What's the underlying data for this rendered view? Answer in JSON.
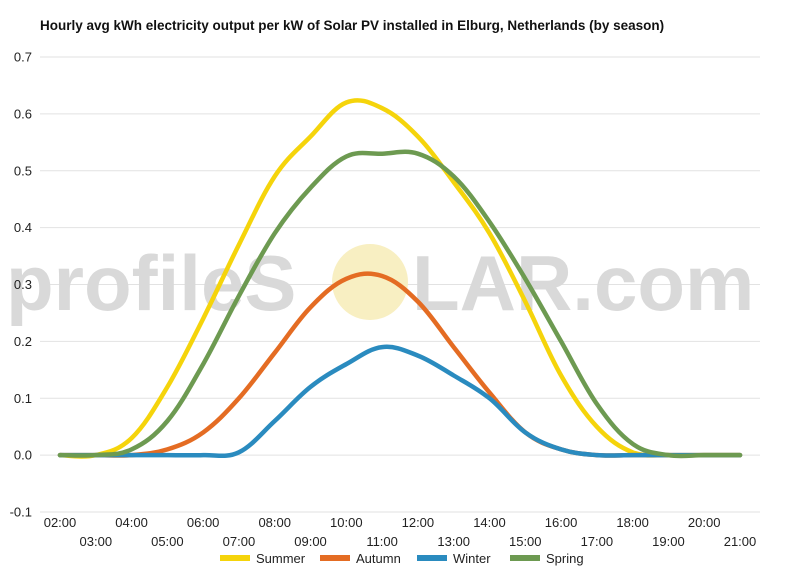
{
  "chart_data": {
    "type": "line",
    "title": "Hourly avg kWh electricity output per kW of Solar PV installed in Elburg, Netherlands (by season)",
    "xlabel": "",
    "ylabel": "",
    "ylim": [
      -0.1,
      0.7
    ],
    "yticks": [
      "-0.1",
      "0.0",
      "0.1",
      "0.2",
      "0.3",
      "0.4",
      "0.5",
      "0.6",
      "0.7"
    ],
    "x": [
      "02:00",
      "03:00",
      "04:00",
      "05:00",
      "06:00",
      "07:00",
      "08:00",
      "09:00",
      "10:00",
      "11:00",
      "12:00",
      "13:00",
      "14:00",
      "15:00",
      "16:00",
      "17:00",
      "18:00",
      "19:00",
      "20:00",
      "21:00"
    ],
    "grid": true,
    "legend": "bottom",
    "series": [
      {
        "name": "Summer",
        "color": "#f5d40b",
        "values": [
          0.0,
          0.0,
          0.03,
          0.12,
          0.24,
          0.37,
          0.49,
          0.56,
          0.62,
          0.61,
          0.56,
          0.48,
          0.39,
          0.27,
          0.14,
          0.05,
          0.005,
          0.0,
          0.0,
          0.0
        ]
      },
      {
        "name": "Autumn",
        "color": "#e46c23",
        "values": [
          0.0,
          0.0,
          0.0,
          0.01,
          0.04,
          0.1,
          0.18,
          0.26,
          0.31,
          0.315,
          0.27,
          0.19,
          0.11,
          0.04,
          0.01,
          0.0,
          0.0,
          0.0,
          0.0,
          0.0
        ]
      },
      {
        "name": "Winter",
        "color": "#2a8bbf",
        "values": [
          0.0,
          0.0,
          0.0,
          0.0,
          0.0,
          0.005,
          0.06,
          0.12,
          0.16,
          0.19,
          0.175,
          0.14,
          0.1,
          0.04,
          0.01,
          0.0,
          0.0,
          0.0,
          0.0,
          0.0
        ]
      },
      {
        "name": "Spring",
        "color": "#6d9a51",
        "values": [
          0.0,
          0.0,
          0.01,
          0.06,
          0.16,
          0.28,
          0.39,
          0.47,
          0.525,
          0.53,
          0.53,
          0.49,
          0.41,
          0.31,
          0.2,
          0.09,
          0.02,
          0.0,
          0.0,
          0.0
        ]
      }
    ]
  },
  "watermark": {
    "left": "profileS",
    "right": "LAR.com"
  }
}
